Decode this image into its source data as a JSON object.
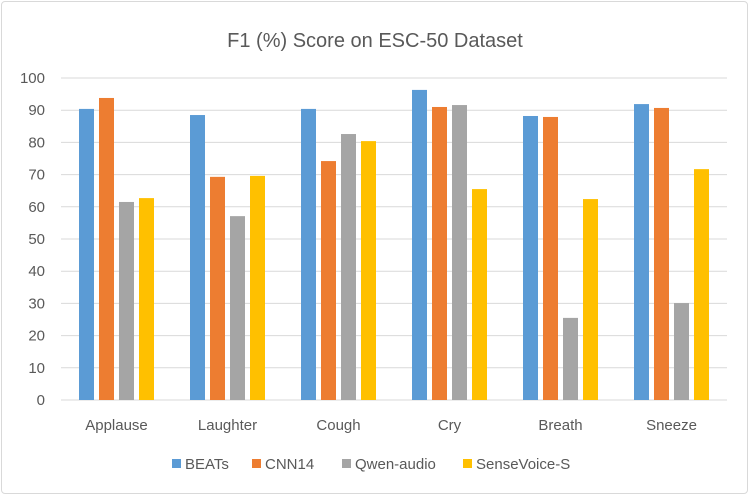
{
  "chart_data": {
    "type": "bar",
    "title": "F1 (%) Score on ESC-50 Dataset",
    "xlabel": "",
    "ylabel": "",
    "ylim": [
      0,
      100
    ],
    "yticks": [
      0,
      10,
      20,
      30,
      40,
      50,
      60,
      70,
      80,
      90,
      100
    ],
    "grid": true,
    "legend": "bottom",
    "categories": [
      "Applause",
      "Laughter",
      "Cough",
      "Cry",
      "Breath",
      "Sneeze"
    ],
    "series": [
      {
        "name": "BEATs",
        "color": "#5b9bd5",
        "values": [
          90.4,
          88.5,
          90.4,
          96.3,
          88.2,
          91.9
        ]
      },
      {
        "name": "CNN14",
        "color": "#ed7d31",
        "values": [
          93.8,
          69.3,
          74.2,
          91.0,
          87.9,
          90.7
        ]
      },
      {
        "name": "Qwen-audio",
        "color": "#a5a5a5",
        "values": [
          61.5,
          57.1,
          82.6,
          91.6,
          25.5,
          30.1
        ]
      },
      {
        "name": "SenseVoice-S",
        "color": "#ffc000",
        "values": [
          62.7,
          69.6,
          80.4,
          65.5,
          62.4,
          71.7
        ]
      }
    ]
  }
}
